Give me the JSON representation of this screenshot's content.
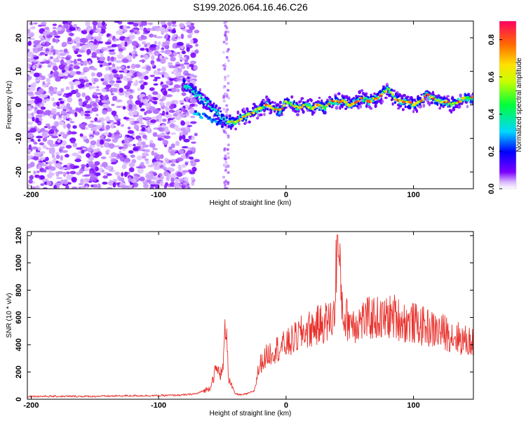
{
  "figure": {
    "title": "S199.2026.064.16.46.C26"
  },
  "chart_data": [
    {
      "type": "heatmap",
      "name": "spectrogram",
      "xlabel": "Height of straight line (km)",
      "ylabel": "Frequency (Hz)",
      "xlim": [
        -203,
        147
      ],
      "ylim": [
        -25,
        25
      ],
      "xticks": [
        -200,
        -100,
        0,
        100
      ],
      "yticks": [
        -20,
        -10,
        0,
        10,
        20
      ],
      "noise_region_x": [
        -203,
        -75
      ],
      "isolated_column_x": -47,
      "ridge": {
        "x": [
          -80,
          -75,
          -70,
          -65,
          -60,
          -55,
          -50,
          -45,
          -40,
          -35,
          -30,
          -25,
          -20,
          -15,
          -10,
          -5,
          0,
          5,
          10,
          15,
          20,
          25,
          30,
          35,
          40,
          45,
          50,
          55,
          60,
          65,
          70,
          75,
          80,
          85,
          90,
          95,
          100,
          105,
          110,
          115,
          120,
          125,
          130,
          135,
          140,
          147
        ],
        "frequency": [
          6,
          5,
          3,
          1.5,
          0,
          -2,
          -4,
          -5,
          -5,
          -4,
          -3,
          -2,
          -1,
          0,
          -1,
          -2,
          1,
          0,
          -1,
          0,
          -1,
          0,
          -1,
          1,
          1,
          1,
          0,
          1,
          2,
          1,
          2,
          3,
          5,
          2,
          1,
          1,
          0,
          1,
          3,
          2,
          1,
          1,
          0,
          1,
          2,
          2
        ]
      },
      "colorbar": {
        "label": "Normalized spectral amplitude",
        "range": [
          0,
          0.9
        ],
        "ticks": [
          0.0,
          0.2,
          0.4,
          0.6,
          0.8
        ]
      }
    },
    {
      "type": "line",
      "name": "snr",
      "xlabel": "Height of straight line (km)",
      "ylabel": "SNR (10 * v/v)",
      "xlim": [
        -203,
        147
      ],
      "ylim": [
        0,
        1230
      ],
      "xticks": [
        -200,
        -100,
        0,
        100
      ],
      "yticks": [
        0,
        200,
        400,
        600,
        800,
        1000,
        1200
      ],
      "line_color": "#e8312c",
      "series": [
        {
          "name": "SNR",
          "x": [
            -203,
            -180,
            -150,
            -120,
            -100,
            -80,
            -70,
            -60,
            -55,
            -50,
            -47,
            -45,
            -42,
            -40,
            -35,
            -30,
            -25,
            -22,
            -20,
            -15,
            -10,
            -5,
            0,
            5,
            10,
            15,
            20,
            25,
            30,
            35,
            38,
            40,
            45,
            50,
            55,
            60,
            65,
            70,
            75,
            80,
            85,
            90,
            95,
            100,
            105,
            110,
            115,
            120,
            125,
            130,
            135,
            140,
            145,
            147
          ],
          "y": [
            20,
            20,
            20,
            25,
            25,
            30,
            40,
            80,
            220,
            180,
            600,
            150,
            80,
            40,
            30,
            40,
            60,
            200,
            260,
            320,
            360,
            380,
            400,
            430,
            470,
            500,
            520,
            540,
            560,
            580,
            620,
            1180,
            600,
            580,
            560,
            580,
            590,
            600,
            580,
            600,
            610,
            580,
            560,
            560,
            540,
            530,
            510,
            500,
            490,
            470,
            450,
            430,
            420,
            420
          ]
        }
      ]
    }
  ]
}
